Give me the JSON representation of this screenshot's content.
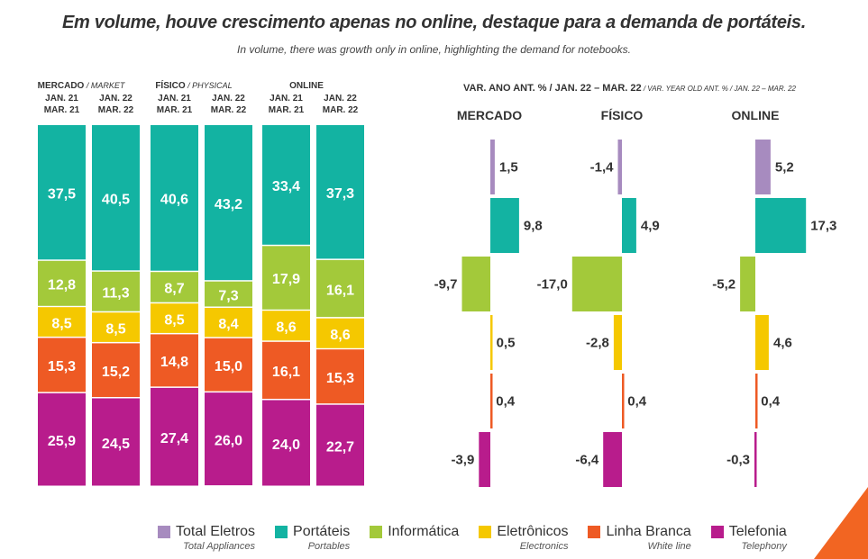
{
  "title": "Em volume, houve crescimento apenas no online, destaque para a demanda de portáteis.",
  "subtitle": "In volume, there was growth only in online, highlighting the demand for notebooks.",
  "colors": {
    "total_eletros": "#a78bbf",
    "portateis": "#13b3a2",
    "informatica": "#a3c93a",
    "eletronicos": "#f5c800",
    "linha_branca": "#ee5a24",
    "telefonia": "#b81c8c"
  },
  "chart_data": [
    {
      "type": "bar",
      "stacked": true,
      "percent": true,
      "groups": [
        {
          "label": "MERCADO",
          "label_en": "MARKET",
          "periods": [
            "JAN. 21\nMAR. 21",
            "JAN. 22\nMAR. 22"
          ]
        },
        {
          "label": "FÍSICO",
          "label_en": "PHYSICAL",
          "periods": [
            "JAN. 21\nMAR. 21",
            "JAN. 22\nMAR. 22"
          ]
        },
        {
          "label": "ONLINE",
          "label_en": "",
          "periods": [
            "JAN. 21\nMAR. 21",
            "JAN. 22\nMAR. 22"
          ]
        }
      ],
      "series": [
        {
          "name": "Portáteis",
          "key": "portateis",
          "values": [
            37.5,
            40.5,
            40.6,
            43.2,
            33.4,
            37.3
          ],
          "labels": [
            "37,5",
            "40,5",
            "40,6",
            "43,2",
            "33,4",
            "37,3"
          ]
        },
        {
          "name": "Informática",
          "key": "informatica",
          "values": [
            12.8,
            11.3,
            8.7,
            7.3,
            17.9,
            16.1
          ],
          "labels": [
            "12,8",
            "11,3",
            "8,7",
            "7,3",
            "17,9",
            "16,1"
          ]
        },
        {
          "name": "Eletrônicos",
          "key": "eletronicos",
          "values": [
            8.5,
            8.5,
            8.5,
            8.4,
            8.6,
            8.6
          ],
          "labels": [
            "8,5",
            "8,5",
            "8,5",
            "8,4",
            "8,6",
            "8,6"
          ]
        },
        {
          "name": "Linha Branca",
          "key": "linha_branca",
          "values": [
            15.3,
            15.2,
            14.8,
            15.0,
            16.1,
            15.3
          ],
          "labels": [
            "15,3",
            "15,2",
            "14,8",
            "15,0",
            "16,1",
            "15,3"
          ]
        },
        {
          "name": "Telefonia",
          "key": "telefonia",
          "values": [
            25.9,
            24.5,
            27.4,
            26.0,
            24.0,
            22.7
          ],
          "labels": [
            "25,9",
            "24,5",
            "27,4",
            "26,0",
            "24,0",
            "22,7"
          ]
        }
      ]
    },
    {
      "type": "bar",
      "orientation": "horizontal",
      "title": "VAR. ANO ANT. % / JAN. 22 – MAR. 22",
      "title_en": "VAR. YEAR OLD ANT. % / JAN. 22 – MAR. 22",
      "panels": [
        "MERCADO",
        "FÍSICO",
        "ONLINE"
      ],
      "categories": [
        "Total Eletros",
        "Portáteis",
        "Informática",
        "Eletrônicos",
        "Linha Branca",
        "Telefonia"
      ],
      "keys": [
        "total_eletros",
        "portateis",
        "informatica",
        "eletronicos",
        "linha_branca",
        "telefonia"
      ],
      "values": [
        [
          1.5,
          9.8,
          -9.7,
          0.5,
          0.4,
          -3.9
        ],
        [
          -1.4,
          4.9,
          -17.0,
          -2.8,
          0.4,
          -6.4
        ],
        [
          5.2,
          17.3,
          -5.2,
          4.6,
          0.4,
          -0.3
        ]
      ],
      "labels": [
        [
          "1,5",
          "9,8",
          "-9,7",
          "0,5",
          "0,4",
          "-3,9"
        ],
        [
          "-1,4",
          "4,9",
          "-17,0",
          "-2,8",
          "0,4",
          "-6,4"
        ],
        [
          "5,2",
          "17,3",
          "-5,2",
          "4,6",
          "0,4",
          "-0,3"
        ]
      ]
    }
  ],
  "legend": [
    {
      "key": "total_eletros",
      "label": "Total Eletros",
      "label_en": "Total Appliances"
    },
    {
      "key": "portateis",
      "label": "Portáteis",
      "label_en": "Portables"
    },
    {
      "key": "informatica",
      "label": "Informática",
      "label_en": ""
    },
    {
      "key": "eletronicos",
      "label": "Eletrônicos",
      "label_en": "Electronics"
    },
    {
      "key": "linha_branca",
      "label": "Linha Branca",
      "label_en": "White line"
    },
    {
      "key": "telefonia",
      "label": "Telefonia",
      "label_en": "Telephony"
    }
  ]
}
